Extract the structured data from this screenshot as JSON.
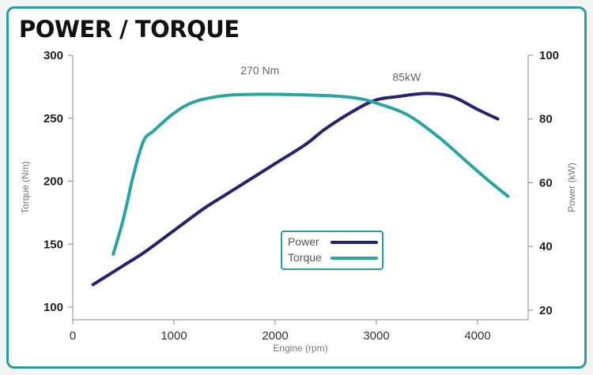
{
  "title": "POWER / TORQUE",
  "chart_data": {
    "type": "line",
    "title": "POWER / TORQUE",
    "xlabel": "Engine (rpm)",
    "ylabel_left": "Torque (Nm)",
    "ylabel_right": "Power (kW)",
    "xlim": [
      0,
      4500
    ],
    "ylim_left": [
      90,
      300
    ],
    "ylim_right": [
      17,
      100
    ],
    "x_ticks": [
      "0",
      "1000",
      "2000",
      "3000",
      "4000"
    ],
    "y_left_ticks": [
      "100",
      "150",
      "200",
      "250",
      "300"
    ],
    "y_right_ticks": [
      "20",
      "40",
      "60",
      "80",
      "100"
    ],
    "grid": false,
    "legend_position": "center-bottom",
    "series": [
      {
        "name": "Power",
        "axis": "right",
        "color": "#26236e",
        "x": [
          200,
          500,
          700,
          1000,
          1300,
          1500,
          1800,
          2000,
          2300,
          2500,
          2800,
          3000,
          3200,
          3500,
          3750,
          4000,
          4200
        ],
        "y": [
          28,
          34,
          38,
          45,
          52,
          56,
          62,
          66,
          72,
          77,
          83,
          86,
          87,
          88,
          87,
          83,
          80
        ]
      },
      {
        "name": "Torque",
        "axis": "left",
        "color": "#2aa3a3",
        "x": [
          400,
          500,
          600,
          700,
          800,
          1000,
          1200,
          1500,
          1800,
          2000,
          2500,
          2800,
          3000,
          3300,
          3600,
          3900,
          4100,
          4300
        ],
        "y": [
          142,
          170,
          205,
          232,
          240,
          254,
          263,
          268,
          269,
          269,
          268,
          266,
          262,
          253,
          236,
          215,
          201,
          188
        ]
      }
    ],
    "annotations": [
      {
        "text": "270 Nm",
        "x": 1850,
        "y": 285,
        "axis": "left"
      },
      {
        "text": "85kW",
        "x": 3300,
        "y": 92,
        "axis": "right"
      }
    ]
  }
}
